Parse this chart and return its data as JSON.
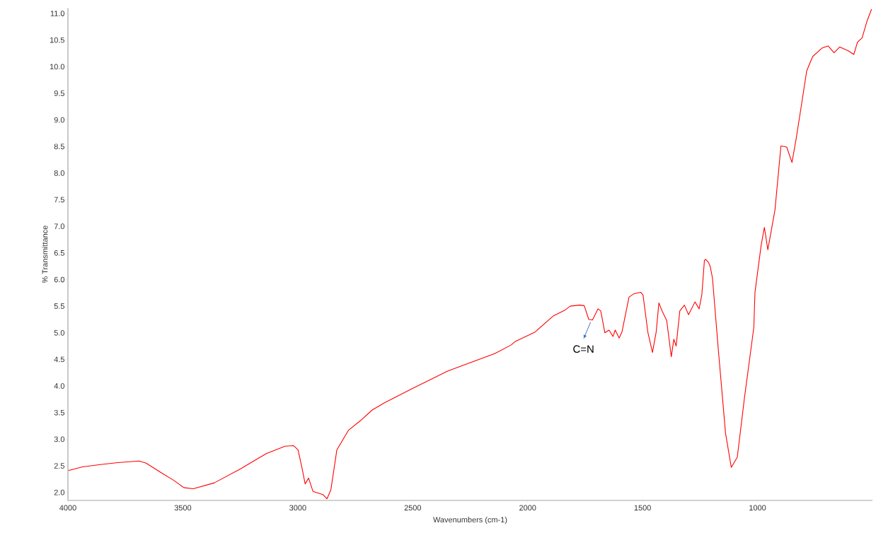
{
  "chart_data": {
    "type": "line",
    "xlabel": "Wavenumbers (cm-1)",
    "ylabel": "% Transmittance",
    "xlim": [
      4000,
      500
    ],
    "ylim": [
      1.85,
      11.1
    ],
    "xticks": [
      4000,
      3500,
      3000,
      2500,
      2000,
      1500,
      1000
    ],
    "yticks": [
      {
        "value": 2,
        "label": "2.0"
      },
      {
        "value": 2.5,
        "label": "2.5"
      },
      {
        "value": 3,
        "label": "3.0"
      },
      {
        "value": 3.5,
        "label": "3.5"
      },
      {
        "value": 4,
        "label": "4.0"
      },
      {
        "value": 4.5,
        "label": "4.5"
      },
      {
        "value": 5,
        "label": "5.0"
      },
      {
        "value": 5.5,
        "label": "5.5"
      },
      {
        "value": 6,
        "label": "6.0"
      },
      {
        "value": 6.5,
        "label": "6.5"
      },
      {
        "value": 7,
        "label": "7.0"
      },
      {
        "value": 7.5,
        "label": "7.5"
      },
      {
        "value": 8,
        "label": "8.0"
      },
      {
        "value": 8.5,
        "label": "8.5"
      },
      {
        "value": 9,
        "label": "9.0"
      },
      {
        "value": 9.5,
        "label": "9.5"
      },
      {
        "value": 10,
        "label": "10.0"
      },
      {
        "value": 10.5,
        "label": "10.5"
      },
      {
        "value": 11,
        "label": "11.0"
      }
    ],
    "grid": false,
    "annotations": [
      {
        "text": "C=N",
        "x": 1720,
        "y": 5.24
      }
    ],
    "series": [
      {
        "color": "#ff0000",
        "x": [
          3998,
          3936,
          3865,
          3783,
          3690,
          3660,
          3598,
          3537,
          3496,
          3455,
          3363,
          3250,
          3137,
          3055,
          3019,
          2999,
          2983,
          2968,
          2953,
          2934,
          2891,
          2873,
          2856,
          2830,
          2779,
          2727,
          2676,
          2625,
          2502,
          2348,
          2143,
          2072,
          2056,
          1969,
          1887,
          1836,
          1815,
          1774,
          1754,
          1734,
          1718,
          1694,
          1682,
          1664,
          1646,
          1629,
          1619,
          1602,
          1590,
          1559,
          1539,
          1508,
          1498,
          1477,
          1457,
          1441,
          1429,
          1415,
          1395,
          1375,
          1364,
          1354,
          1338,
          1318,
          1300,
          1272,
          1254,
          1242,
          1231,
          1226,
          1213,
          1206,
          1196,
          1170,
          1139,
          1114,
          1088,
          1057,
          1016,
          1011,
          984,
          970,
          955,
          924,
          898,
          873,
          850,
          832,
          811,
          786,
          760,
          719,
          693,
          667,
          642,
          606,
          581,
          565,
          545,
          524,
          504
        ],
        "values": [
          2.41,
          2.48,
          2.52,
          2.56,
          2.59,
          2.55,
          2.38,
          2.22,
          2.09,
          2.07,
          2.18,
          2.44,
          2.73,
          2.87,
          2.88,
          2.8,
          2.49,
          2.16,
          2.27,
          2.02,
          1.96,
          1.88,
          2.05,
          2.8,
          3.17,
          3.35,
          3.55,
          3.68,
          3.95,
          4.28,
          4.61,
          4.77,
          4.83,
          5.01,
          5.32,
          5.43,
          5.5,
          5.52,
          5.51,
          5.25,
          5.24,
          5.45,
          5.41,
          5.0,
          5.05,
          4.93,
          5.05,
          4.9,
          5.01,
          5.67,
          5.73,
          5.76,
          5.71,
          5.01,
          4.63,
          5.01,
          5.56,
          5.41,
          5.23,
          4.55,
          4.88,
          4.75,
          5.41,
          5.52,
          5.34,
          5.58,
          5.45,
          5.72,
          6.36,
          6.38,
          6.32,
          6.25,
          6.03,
          4.66,
          3.11,
          2.47,
          2.66,
          3.77,
          5.1,
          5.76,
          6.65,
          6.98,
          6.56,
          7.31,
          8.51,
          8.49,
          8.2,
          8.64,
          9.22,
          9.92,
          10.19,
          10.35,
          10.39,
          10.26,
          10.37,
          10.3,
          10.23,
          10.46,
          10.54,
          10.85,
          11.08
        ]
      }
    ]
  }
}
